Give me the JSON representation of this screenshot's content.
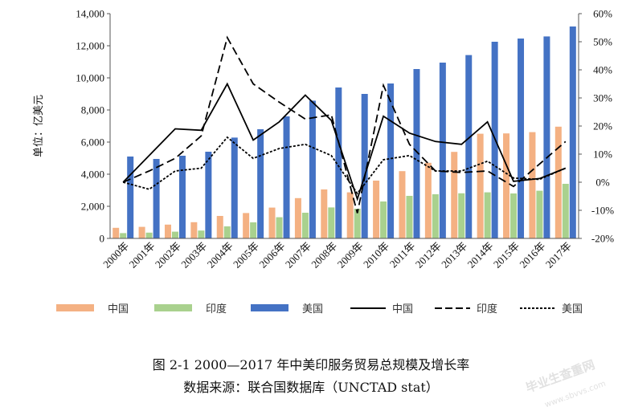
{
  "chart_data": {
    "type": "bar",
    "categories": [
      "2000年",
      "2001年",
      "2002年",
      "2003年",
      "2004年",
      "2005年",
      "2006年",
      "2007年",
      "2008年",
      "2009年",
      "2010年",
      "2011年",
      "2012年",
      "2013年",
      "2014年",
      "2015年",
      "2016年",
      "2017年"
    ],
    "ylabel": "单位：亿美元",
    "ylim": [
      0,
      14000
    ],
    "y_ticks": [
      "0",
      "2,000",
      "4,000",
      "6,000",
      "8,000",
      "10,000",
      "12,000",
      "14,000"
    ],
    "y2lim": [
      -0.2,
      0.6
    ],
    "y2_ticks": [
      "-20%",
      "-10%",
      "0%",
      "10%",
      "20%",
      "30%",
      "40%",
      "50%",
      "60%"
    ],
    "legend_position": "bottom",
    "bar_series": [
      {
        "name": "中国",
        "color": "#F4B183",
        "values": [
          660,
          720,
          860,
          1010,
          1400,
          1580,
          1920,
          2510,
          3050,
          2870,
          3600,
          4190,
          4710,
          5390,
          6520,
          6540,
          6620,
          6960
        ]
      },
      {
        "name": "印度",
        "color": "#A9D18E",
        "values": [
          330,
          360,
          420,
          490,
          750,
          1000,
          1320,
          1600,
          1930,
          1850,
          2300,
          2650,
          2750,
          2810,
          2870,
          2800,
          2970,
          3400
        ]
      },
      {
        "name": "美国",
        "color": "#4472C4",
        "values": [
          5100,
          4950,
          5150,
          5400,
          6280,
          6800,
          7600,
          8580,
          9400,
          9000,
          9650,
          10550,
          10950,
          11420,
          12250,
          12450,
          12580,
          13200
        ]
      }
    ],
    "line_series": [
      {
        "name": "中国",
        "style": "solid",
        "values": [
          0.0,
          0.095,
          0.19,
          0.185,
          0.35,
          0.15,
          0.215,
          0.31,
          0.22,
          -0.06,
          0.235,
          0.175,
          0.145,
          0.135,
          0.215,
          0.003,
          0.013,
          0.05
        ]
      },
      {
        "name": "印度",
        "style": "dashed",
        "values": [
          0.0,
          0.04,
          0.085,
          0.165,
          0.515,
          0.35,
          0.285,
          0.225,
          0.24,
          -0.11,
          0.345,
          0.135,
          0.04,
          0.035,
          0.04,
          -0.015,
          0.065,
          0.145
        ]
      },
      {
        "name": "美国",
        "style": "dotted",
        "values": [
          0.0,
          -0.025,
          0.04,
          0.05,
          0.16,
          0.085,
          0.12,
          0.135,
          0.095,
          -0.04,
          0.08,
          0.095,
          0.04,
          0.04,
          0.075,
          0.015,
          0.01,
          0.05
        ]
      }
    ]
  },
  "figure": {
    "title": "图 2-1    2000—2017 年中美印服务贸易总规模及增长率",
    "source": "数据来源：联合国数据库（UNCTAD stat）"
  },
  "watermark": {
    "text": "毕业生查重网",
    "url": "www.sbvvs.com"
  }
}
